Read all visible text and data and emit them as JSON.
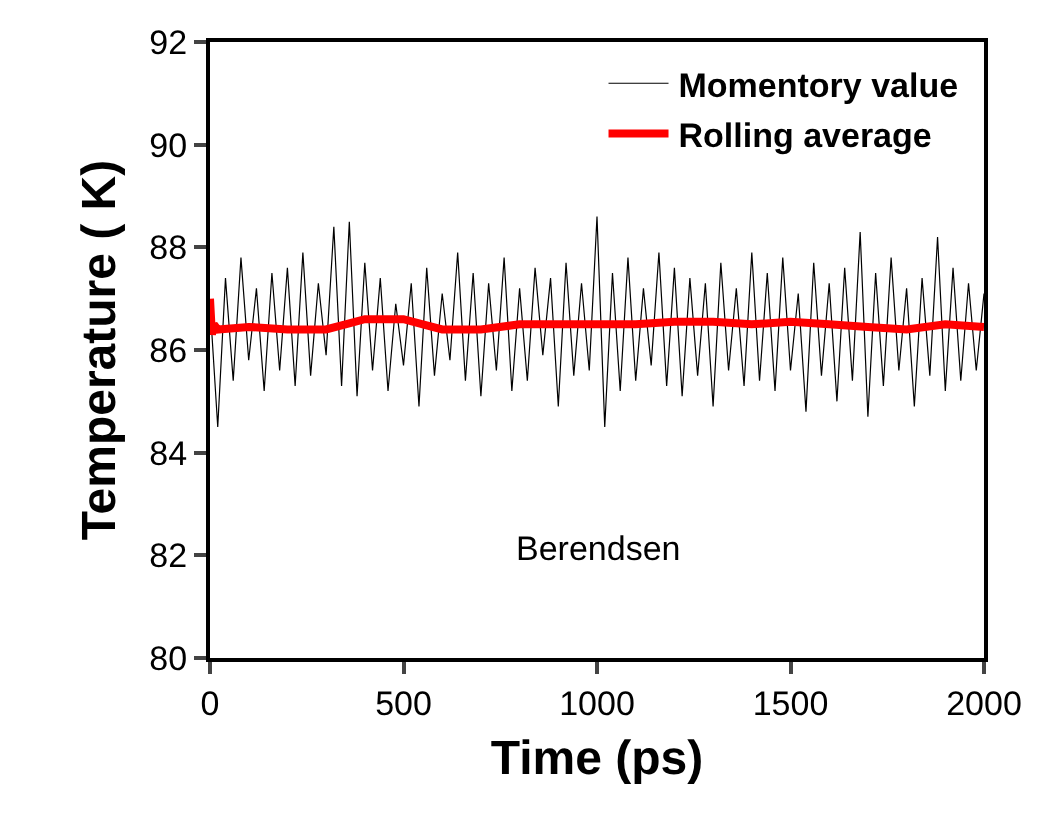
{
  "chart_data": {
    "type": "line",
    "xlabel": "Time (ps)",
    "ylabel": "Temperature ( K)",
    "xlim": [
      0,
      2000
    ],
    "xticks": [
      0,
      500,
      1000,
      1500,
      2000
    ],
    "ylim": [
      80,
      92
    ],
    "yticks": [
      80,
      82,
      84,
      86,
      88,
      90,
      92
    ],
    "grid": false,
    "legend": "top right",
    "marker": "none",
    "line_style": "solid",
    "annotations": [
      "Berendsen"
    ],
    "series": [
      {
        "name": "Momentory value",
        "color": "#000000",
        "x": [
          0,
          20,
          40,
          60,
          80,
          100,
          120,
          140,
          160,
          180,
          200,
          220,
          240,
          260,
          280,
          300,
          320,
          340,
          360,
          380,
          400,
          420,
          440,
          460,
          480,
          500,
          520,
          540,
          560,
          580,
          600,
          620,
          640,
          660,
          680,
          700,
          720,
          740,
          760,
          780,
          800,
          820,
          840,
          860,
          880,
          900,
          920,
          940,
          960,
          980,
          1000,
          1020,
          1040,
          1060,
          1080,
          1100,
          1120,
          1140,
          1160,
          1180,
          1200,
          1220,
          1240,
          1260,
          1280,
          1300,
          1320,
          1340,
          1360,
          1380,
          1400,
          1420,
          1440,
          1460,
          1480,
          1500,
          1520,
          1540,
          1560,
          1580,
          1600,
          1620,
          1640,
          1660,
          1680,
          1700,
          1720,
          1740,
          1760,
          1780,
          1800,
          1820,
          1840,
          1860,
          1880,
          1900,
          1920,
          1940,
          1960,
          1980,
          2000
        ],
        "values": [
          86.9,
          84.5,
          87.4,
          85.4,
          87.8,
          85.8,
          87.2,
          85.2,
          87.5,
          85.6,
          87.6,
          85.3,
          87.9,
          85.5,
          87.3,
          85.9,
          88.4,
          85.3,
          88.5,
          85.1,
          87.7,
          85.6,
          87.4,
          85.2,
          86.9,
          85.7,
          87.3,
          84.9,
          87.6,
          85.5,
          87.1,
          85.8,
          87.9,
          85.4,
          87.5,
          85.1,
          87.3,
          85.6,
          87.8,
          85.2,
          87.2,
          85.4,
          87.6,
          85.9,
          87.4,
          84.9,
          87.7,
          85.5,
          87.3,
          85.6,
          88.6,
          84.5,
          87.5,
          85.2,
          87.8,
          85.4,
          87.2,
          85.7,
          87.9,
          85.3,
          87.6,
          85.1,
          87.4,
          85.5,
          87.3,
          84.9,
          87.7,
          85.6,
          87.2,
          85.3,
          87.9,
          85.4,
          87.5,
          85.2,
          87.8,
          85.6,
          87.1,
          84.8,
          87.7,
          85.5,
          87.3,
          85.0,
          87.6,
          85.4,
          88.3,
          84.7,
          87.5,
          85.3,
          87.8,
          85.6,
          87.2,
          84.9,
          87.4,
          85.5,
          88.2,
          85.2,
          87.6,
          85.4,
          87.3,
          85.6,
          87.1
        ]
      },
      {
        "name": "Rolling average",
        "color": "#ff0000",
        "x": [
          0,
          5,
          10,
          20,
          100,
          200,
          300,
          350,
          400,
          450,
          500,
          550,
          600,
          700,
          800,
          900,
          1000,
          1100,
          1200,
          1300,
          1400,
          1500,
          1600,
          1700,
          1800,
          1900,
          2000
        ],
        "values": [
          87.0,
          86.3,
          86.5,
          86.4,
          86.45,
          86.4,
          86.4,
          86.5,
          86.6,
          86.6,
          86.6,
          86.5,
          86.4,
          86.4,
          86.5,
          86.5,
          86.5,
          86.5,
          86.55,
          86.55,
          86.5,
          86.55,
          86.5,
          86.45,
          86.4,
          86.5,
          86.45
        ]
      }
    ]
  }
}
